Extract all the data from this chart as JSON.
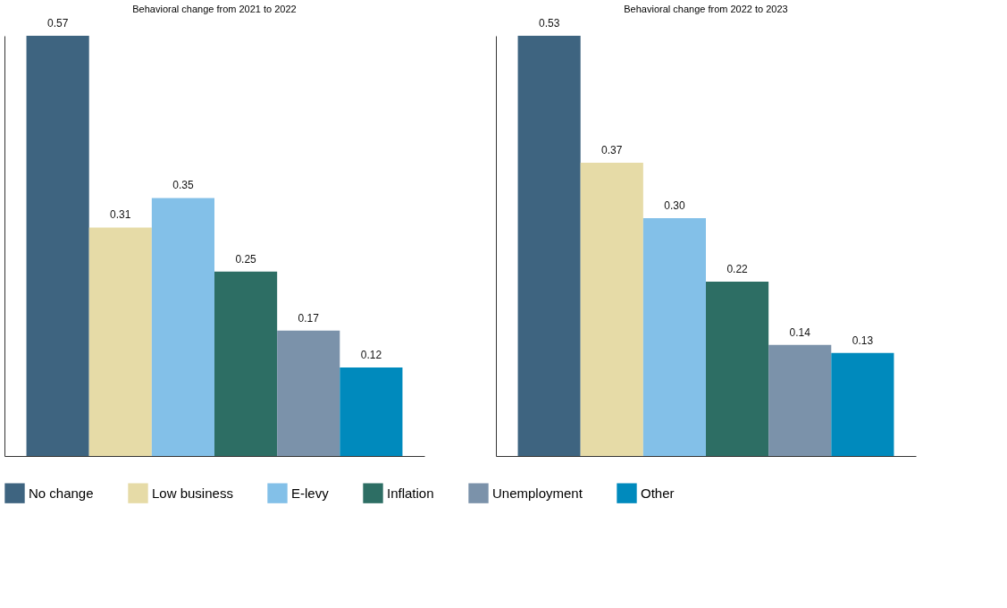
{
  "chart_data": [
    {
      "type": "bar",
      "title": "Behavioral change from 2021 to 2022",
      "categories": [
        null
      ],
      "legend": "bottom",
      "grid": false,
      "tick_labels": false,
      "series": [
        {
          "name": "No change",
          "color": "#3e6480",
          "values": [
            0.57
          ],
          "value_labels": [
            "0.57"
          ]
        },
        {
          "name": "Low business",
          "color": "#e6dba7",
          "values": [
            0.31
          ],
          "value_labels": [
            "0.31"
          ]
        },
        {
          "name": "E-levy",
          "color": "#83c0e8",
          "values": [
            0.35
          ],
          "value_labels": [
            "0.35"
          ]
        },
        {
          "name": "Inflation",
          "color": "#2d6e64",
          "values": [
            0.25
          ],
          "value_labels": [
            "0.25"
          ]
        },
        {
          "name": "Unemployment",
          "color": "#7b92aa",
          "values": [
            0.17
          ],
          "value_labels": [
            "0.17"
          ]
        },
        {
          "name": "Other",
          "color": "#008abd",
          "values": [
            0.12
          ],
          "value_labels": [
            "0.12"
          ]
        }
      ]
    },
    {
      "type": "bar",
      "title": "Behavioral change from 2022 to 2023",
      "categories": [
        null
      ],
      "grid": false,
      "tick_labels": false,
      "series": [
        {
          "name": "No change",
          "color": "#3e6480",
          "values": [
            0.53
          ],
          "value_labels": [
            "0.53"
          ]
        },
        {
          "name": "Low business",
          "color": "#e6dba7",
          "values": [
            0.37
          ],
          "value_labels": [
            "0.37"
          ]
        },
        {
          "name": "E-levy",
          "color": "#83c0e8",
          "values": [
            0.3
          ],
          "value_labels": [
            "0.30"
          ]
        },
        {
          "name": "Inflation",
          "color": "#2d6e64",
          "values": [
            0.22
          ],
          "value_labels": [
            "0.22"
          ]
        },
        {
          "name": "Unemployment",
          "color": "#7b92aa",
          "values": [
            0.14
          ],
          "value_labels": [
            "0.14"
          ]
        },
        {
          "name": "Other",
          "color": "#008abd",
          "values": [
            0.13
          ],
          "value_labels": [
            "0.13"
          ]
        }
      ]
    }
  ]
}
